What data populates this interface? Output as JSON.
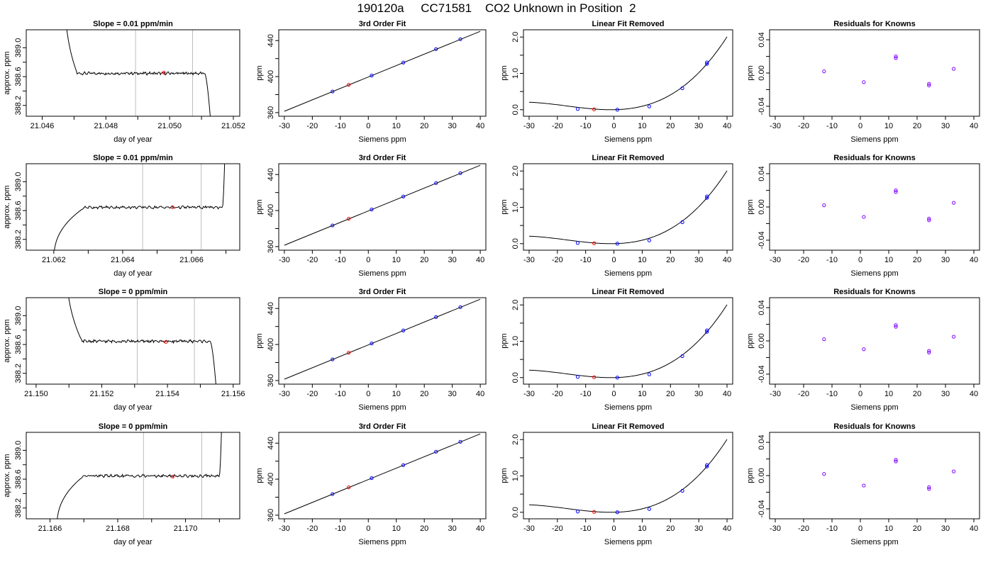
{
  "main_title": "190120a     CC71581    CO2 Unknown in Position  2",
  "colors": {
    "axis": "#000000",
    "line": "#000000",
    "vline": "#bdbdbd",
    "red": "#ff0000",
    "blue": "#0000ff",
    "purple": "#7f00ff"
  },
  "chart_data": [
    {
      "type": "line",
      "row": 0,
      "col": 0,
      "title": "Slope =  0.01  ppm/min",
      "xlabel": "day of year",
      "ylabel": "approx. ppm",
      "xlim": [
        21.0455,
        21.0522
      ],
      "ylim": [
        388.05,
        389.25
      ],
      "xticks": [
        21.046,
        21.048,
        21.05,
        21.052
      ],
      "xticklabels": [
        "21.046",
        "21.048",
        "21.050",
        "21.052"
      ],
      "yticks": [
        388.2,
        388.6,
        389.0
      ],
      "yticklabels": [
        "388.2",
        "388.6",
        "389.0"
      ],
      "series": [
        {
          "start": 21.0467,
          "end": 21.0513,
          "rise_end": 21.0471,
          "fall_start": 21.0511,
          "level": 388.645,
          "start_value": 390.0,
          "end_value": 387.9,
          "kind": "drop_in"
        }
      ],
      "vlines": [
        21.04893,
        21.05072
      ],
      "marker": {
        "x": 21.04982,
        "y": 388.655
      }
    },
    {
      "type": "scatter",
      "row": 0,
      "col": 1,
      "title": "3rd Order Fit",
      "xlabel": "Siemens ppm",
      "ylabel": "ppm",
      "xlim": [
        -32,
        42
      ],
      "ylim": [
        356,
        452
      ],
      "xticks": [
        -30,
        -20,
        -10,
        0,
        10,
        20,
        30,
        40
      ],
      "xticklabels": [
        "-30",
        "-20",
        "-10",
        "0",
        "10",
        "20",
        "30",
        "40"
      ],
      "yticks": [
        360,
        400,
        440
      ],
      "yticklabels": [
        "360",
        "400",
        "440"
      ],
      "fit_line": {
        "x": [
          -30,
          40
        ],
        "y": [
          361.5,
          450.3
        ]
      },
      "points_blue": [
        {
          "x": -12.8,
          "y": 383.5
        },
        {
          "x": 1.2,
          "y": 401.2
        },
        {
          "x": 12.5,
          "y": 415.6
        },
        {
          "x": 24.2,
          "y": 430.5
        },
        {
          "x": 32.9,
          "y": 441.5
        }
      ],
      "points_red": [
        {
          "x": -7.0,
          "y": 390.9
        }
      ]
    },
    {
      "type": "scatter",
      "row": 0,
      "col": 2,
      "title": "Linear Fit Removed",
      "xlabel": "Siemens ppm",
      "ylabel": "ppm",
      "xlim": [
        -32,
        42
      ],
      "ylim": [
        -0.18,
        2.2
      ],
      "xticks": [
        -30,
        -20,
        -10,
        0,
        10,
        20,
        30,
        40
      ],
      "xticklabels": [
        "-30",
        "-20",
        "-10",
        "0",
        "10",
        "20",
        "30",
        "40"
      ],
      "yticks": [
        0,
        1,
        2
      ],
      "yticklabels": [
        "0.0",
        "1.0",
        "2.0"
      ],
      "curve": {
        "a": 0.0,
        "b": 0.0014,
        "c": 0.00068,
        "d": 1.35e-05,
        "x0": -30,
        "x1": 40
      },
      "points_blue": [
        {
          "x": -12.8,
          "y": 0.02
        },
        {
          "x": 1.2,
          "y": 0.0
        },
        {
          "x": 12.5,
          "y": 0.09
        },
        {
          "x": 24.2,
          "y": 0.59
        },
        {
          "x": 32.9,
          "y": 1.26
        },
        {
          "x": 32.9,
          "y": 1.3
        }
      ],
      "points_red": [
        {
          "x": -7.0,
          "y": 0.01
        }
      ]
    },
    {
      "type": "scatter",
      "row": 0,
      "col": 3,
      "title": "Residuals for Knowns",
      "xlabel": "Siemens ppm",
      "ylabel": "ppm",
      "xlim": [
        -32,
        42
      ],
      "ylim": [
        -0.052,
        0.052
      ],
      "xticks": [
        -30,
        -20,
        -10,
        0,
        10,
        20,
        30,
        40
      ],
      "xticklabels": [
        "-30",
        "-20",
        "-10",
        "0",
        "10",
        "20",
        "30",
        "40"
      ],
      "yticks": [
        -0.04,
        0,
        0.04
      ],
      "yticklabels": [
        "-0.04",
        "0.00",
        "0.04"
      ],
      "points_purple": [
        {
          "x": -12.8,
          "y": 0.002
        },
        {
          "x": 1.2,
          "y": -0.011
        },
        {
          "x": 12.5,
          "y": 0.018
        },
        {
          "x": 12.5,
          "y": 0.02
        },
        {
          "x": 24.2,
          "y": -0.015
        },
        {
          "x": 24.2,
          "y": -0.013
        },
        {
          "x": 32.9,
          "y": 0.005
        }
      ]
    },
    {
      "type": "line",
      "row": 1,
      "col": 0,
      "title": "Slope =  0.01  ppm/min",
      "xlabel": "day of year",
      "ylabel": "approx. ppm",
      "xlim": [
        21.0612,
        21.0674
      ],
      "ylim": [
        388.05,
        389.25
      ],
      "xticks": [
        21.062,
        21.064,
        21.066
      ],
      "xticklabels": [
        "21.062",
        "21.064",
        "21.066"
      ],
      "yticks": [
        388.2,
        388.6,
        389.0
      ],
      "yticklabels": [
        "388.2",
        "388.6",
        "389.0"
      ],
      "series": [
        {
          "start": 21.062,
          "end": 21.067,
          "rise_end": 21.0629,
          "fall_start": 21.0669,
          "level": 388.645,
          "start_value": 387.9,
          "end_value": 390.0,
          "kind": "rise_in"
        }
      ],
      "vlines": [
        21.06458,
        21.06628
      ],
      "marker": {
        "x": 21.06545,
        "y": 388.645
      }
    },
    {
      "type": "scatter",
      "row": 1,
      "col": 1,
      "title": "3rd Order Fit",
      "xlabel": "Siemens ppm",
      "ylabel": "ppm",
      "xlim": [
        -32,
        42
      ],
      "ylim": [
        356,
        452
      ],
      "xticks": [
        -30,
        -20,
        -10,
        0,
        10,
        20,
        30,
        40
      ],
      "xticklabels": [
        "-30",
        "-20",
        "-10",
        "0",
        "10",
        "20",
        "30",
        "40"
      ],
      "yticks": [
        360,
        400,
        440
      ],
      "yticklabels": [
        "360",
        "400",
        "440"
      ],
      "fit_line": {
        "x": [
          -30,
          40
        ],
        "y": [
          361.5,
          450.3
        ]
      },
      "points_blue": [
        {
          "x": -12.8,
          "y": 383.5
        },
        {
          "x": 1.2,
          "y": 401.2
        },
        {
          "x": 12.5,
          "y": 415.6
        },
        {
          "x": 24.2,
          "y": 430.5
        },
        {
          "x": 32.9,
          "y": 441.5
        }
      ],
      "points_red": [
        {
          "x": -7.0,
          "y": 390.9
        }
      ]
    },
    {
      "type": "scatter",
      "row": 1,
      "col": 2,
      "title": "Linear Fit Removed",
      "xlabel": "Siemens ppm",
      "ylabel": "ppm",
      "xlim": [
        -32,
        42
      ],
      "ylim": [
        -0.18,
        2.2
      ],
      "xticks": [
        -30,
        -20,
        -10,
        0,
        10,
        20,
        30,
        40
      ],
      "xticklabels": [
        "-30",
        "-20",
        "-10",
        "0",
        "10",
        "20",
        "30",
        "40"
      ],
      "yticks": [
        0,
        1,
        2
      ],
      "yticklabels": [
        "0.0",
        "1.0",
        "2.0"
      ],
      "curve": {
        "a": 0.0,
        "b": 0.0014,
        "c": 0.00068,
        "d": 1.35e-05,
        "x0": -30,
        "x1": 40
      },
      "points_blue": [
        {
          "x": -12.8,
          "y": 0.02
        },
        {
          "x": 1.2,
          "y": 0.0
        },
        {
          "x": 12.5,
          "y": 0.09
        },
        {
          "x": 24.2,
          "y": 0.59
        },
        {
          "x": 32.9,
          "y": 1.26
        },
        {
          "x": 32.9,
          "y": 1.3
        }
      ],
      "points_red": [
        {
          "x": -7.0,
          "y": 0.01
        }
      ]
    },
    {
      "type": "scatter",
      "row": 1,
      "col": 3,
      "title": "Residuals for Knowns",
      "xlabel": "Siemens ppm",
      "ylabel": "ppm",
      "xlim": [
        -32,
        42
      ],
      "ylim": [
        -0.052,
        0.052
      ],
      "xticks": [
        -30,
        -20,
        -10,
        0,
        10,
        20,
        30,
        40
      ],
      "xticklabels": [
        "-30",
        "-20",
        "-10",
        "0",
        "10",
        "20",
        "30",
        "40"
      ],
      "yticks": [
        -0.04,
        0,
        0.04
      ],
      "yticklabels": [
        "-0.04",
        "0.00",
        "0.04"
      ],
      "points_purple": [
        {
          "x": -12.8,
          "y": 0.002
        },
        {
          "x": 1.2,
          "y": -0.012
        },
        {
          "x": 12.5,
          "y": 0.018
        },
        {
          "x": 12.5,
          "y": 0.02
        },
        {
          "x": 24.2,
          "y": -0.016
        },
        {
          "x": 24.2,
          "y": -0.014
        },
        {
          "x": 32.9,
          "y": 0.005
        }
      ]
    },
    {
      "type": "line",
      "row": 2,
      "col": 0,
      "title": "Slope =  0  ppm/min",
      "xlabel": "day of year",
      "ylabel": "approx. ppm",
      "xlim": [
        21.1497,
        21.1562
      ],
      "ylim": [
        388.05,
        389.25
      ],
      "xticks": [
        21.15,
        21.152,
        21.154,
        21.156
      ],
      "xticklabels": [
        "21.150",
        "21.152",
        "21.154",
        "21.156"
      ],
      "yticks": [
        388.2,
        388.6,
        389.0
      ],
      "yticklabels": [
        "388.2",
        "388.6",
        "389.0"
      ],
      "series": [
        {
          "start": 21.1509,
          "end": 21.1555,
          "rise_end": 21.1514,
          "fall_start": 21.1553,
          "level": 388.645,
          "start_value": 390.0,
          "end_value": 387.9,
          "kind": "drop_in"
        }
      ],
      "vlines": [
        21.15308,
        21.15482
      ],
      "marker": {
        "x": 21.15395,
        "y": 388.635
      }
    },
    {
      "type": "scatter",
      "row": 2,
      "col": 1,
      "title": "3rd Order Fit",
      "xlabel": "Siemens ppm",
      "ylabel": "ppm",
      "xlim": [
        -32,
        42
      ],
      "ylim": [
        356,
        452
      ],
      "xticks": [
        -30,
        -20,
        -10,
        0,
        10,
        20,
        30,
        40
      ],
      "xticklabels": [
        "-30",
        "-20",
        "-10",
        "0",
        "10",
        "20",
        "30",
        "40"
      ],
      "yticks": [
        360,
        400,
        440
      ],
      "yticklabels": [
        "360",
        "400",
        "440"
      ],
      "fit_line": {
        "x": [
          -30,
          40
        ],
        "y": [
          361.5,
          450.3
        ]
      },
      "points_blue": [
        {
          "x": -12.8,
          "y": 383.5
        },
        {
          "x": 1.2,
          "y": 401.2
        },
        {
          "x": 12.5,
          "y": 415.6
        },
        {
          "x": 24.2,
          "y": 430.5
        },
        {
          "x": 32.9,
          "y": 441.5
        }
      ],
      "points_red": [
        {
          "x": -7.0,
          "y": 390.9
        }
      ]
    },
    {
      "type": "scatter",
      "row": 2,
      "col": 2,
      "title": "Linear Fit Removed",
      "xlabel": "Siemens ppm",
      "ylabel": "ppm",
      "xlim": [
        -32,
        42
      ],
      "ylim": [
        -0.18,
        2.2
      ],
      "xticks": [
        -30,
        -20,
        -10,
        0,
        10,
        20,
        30,
        40
      ],
      "xticklabels": [
        "-30",
        "-20",
        "-10",
        "0",
        "10",
        "20",
        "30",
        "40"
      ],
      "yticks": [
        0,
        1,
        2
      ],
      "yticklabels": [
        "0.0",
        "1.0",
        "2.0"
      ],
      "curve": {
        "a": 0.0,
        "b": 0.0014,
        "c": 0.00068,
        "d": 1.35e-05,
        "x0": -30,
        "x1": 40
      },
      "points_blue": [
        {
          "x": -12.8,
          "y": 0.02
        },
        {
          "x": 1.2,
          "y": 0.0
        },
        {
          "x": 12.5,
          "y": 0.09
        },
        {
          "x": 24.2,
          "y": 0.59
        },
        {
          "x": 32.9,
          "y": 1.26
        },
        {
          "x": 32.9,
          "y": 1.3
        }
      ],
      "points_red": [
        {
          "x": -7.0,
          "y": 0.01
        }
      ]
    },
    {
      "type": "scatter",
      "row": 2,
      "col": 3,
      "title": "Residuals for Knowns",
      "xlabel": "Siemens ppm",
      "ylabel": "ppm",
      "xlim": [
        -32,
        42
      ],
      "ylim": [
        -0.052,
        0.052
      ],
      "xticks": [
        -30,
        -20,
        -10,
        0,
        10,
        20,
        30,
        40
      ],
      "xticklabels": [
        "-30",
        "-20",
        "-10",
        "0",
        "10",
        "20",
        "30",
        "40"
      ],
      "yticks": [
        -0.04,
        0,
        0.04
      ],
      "yticklabels": [
        "-0.04",
        "0.00",
        "0.04"
      ],
      "points_purple": [
        {
          "x": -12.8,
          "y": 0.002
        },
        {
          "x": 1.2,
          "y": -0.01
        },
        {
          "x": 12.5,
          "y": 0.017
        },
        {
          "x": 12.5,
          "y": 0.019
        },
        {
          "x": 24.2,
          "y": -0.014
        },
        {
          "x": 24.2,
          "y": -0.012
        },
        {
          "x": 32.9,
          "y": 0.005
        }
      ]
    },
    {
      "type": "line",
      "row": 3,
      "col": 0,
      "title": "Slope =  0  ppm/min",
      "xlabel": "day of year",
      "ylabel": "approx. ppm",
      "xlim": [
        21.1653,
        21.1716
      ],
      "ylim": [
        388.05,
        389.25
      ],
      "xticks": [
        21.166,
        21.168,
        21.17
      ],
      "xticklabels": [
        "21.166",
        "21.168",
        "21.170"
      ],
      "yticks": [
        388.2,
        388.6,
        389.0
      ],
      "yticklabels": [
        "388.2",
        "388.6",
        "389.0"
      ],
      "series": [
        {
          "start": 21.1662,
          "end": 21.1711,
          "rise_end": 21.167,
          "fall_start": 21.171,
          "level": 388.645,
          "start_value": 387.9,
          "end_value": 390.0,
          "kind": "rise_in"
        }
      ],
      "vlines": [
        21.16876,
        21.17048
      ],
      "marker": {
        "x": 21.16962,
        "y": 388.635
      }
    },
    {
      "type": "scatter",
      "row": 3,
      "col": 1,
      "title": "3rd Order Fit",
      "xlabel": "Siemens ppm",
      "ylabel": "ppm",
      "xlim": [
        -32,
        42
      ],
      "ylim": [
        356,
        452
      ],
      "xticks": [
        -30,
        -20,
        -10,
        0,
        10,
        20,
        30,
        40
      ],
      "xticklabels": [
        "-30",
        "-20",
        "-10",
        "0",
        "10",
        "20",
        "30",
        "40"
      ],
      "yticks": [
        360,
        400,
        440
      ],
      "yticklabels": [
        "360",
        "400",
        "440"
      ],
      "fit_line": {
        "x": [
          -30,
          40
        ],
        "y": [
          361.5,
          450.3
        ]
      },
      "points_blue": [
        {
          "x": -12.8,
          "y": 383.5
        },
        {
          "x": 1.2,
          "y": 401.2
        },
        {
          "x": 12.5,
          "y": 415.6
        },
        {
          "x": 24.2,
          "y": 430.5
        },
        {
          "x": 32.9,
          "y": 441.5
        }
      ],
      "points_red": [
        {
          "x": -7.0,
          "y": 390.9
        }
      ]
    },
    {
      "type": "scatter",
      "row": 3,
      "col": 2,
      "title": "Linear Fit Removed",
      "xlabel": "Siemens ppm",
      "ylabel": "ppm",
      "xlim": [
        -32,
        42
      ],
      "ylim": [
        -0.18,
        2.2
      ],
      "xticks": [
        -30,
        -20,
        -10,
        0,
        10,
        20,
        30,
        40
      ],
      "xticklabels": [
        "-30",
        "-20",
        "-10",
        "0",
        "10",
        "20",
        "30",
        "40"
      ],
      "yticks": [
        0,
        1,
        2
      ],
      "yticklabels": [
        "0.0",
        "1.0",
        "2.0"
      ],
      "curve": {
        "a": 0.0,
        "b": 0.0014,
        "c": 0.00068,
        "d": 1.35e-05,
        "x0": -30,
        "x1": 40
      },
      "points_blue": [
        {
          "x": -12.8,
          "y": 0.02
        },
        {
          "x": 1.2,
          "y": 0.0
        },
        {
          "x": 12.5,
          "y": 0.09
        },
        {
          "x": 24.2,
          "y": 0.59
        },
        {
          "x": 32.9,
          "y": 1.26
        },
        {
          "x": 32.9,
          "y": 1.3
        }
      ],
      "points_red": [
        {
          "x": -7.0,
          "y": 0.01
        }
      ]
    },
    {
      "type": "scatter",
      "row": 3,
      "col": 3,
      "title": "Residuals for Knowns",
      "xlabel": "Siemens ppm",
      "ylabel": "ppm",
      "xlim": [
        -32,
        42
      ],
      "ylim": [
        -0.052,
        0.052
      ],
      "xticks": [
        -30,
        -20,
        -10,
        0,
        10,
        20,
        30,
        40
      ],
      "xticklabels": [
        "-30",
        "-20",
        "-10",
        "0",
        "10",
        "20",
        "30",
        "40"
      ],
      "yticks": [
        -0.04,
        0,
        0.04
      ],
      "yticklabels": [
        "-0.04",
        "0.00",
        "0.04"
      ],
      "points_purple": [
        {
          "x": -12.8,
          "y": 0.002
        },
        {
          "x": 1.2,
          "y": -0.012
        },
        {
          "x": 12.5,
          "y": 0.017
        },
        {
          "x": 12.5,
          "y": 0.019
        },
        {
          "x": 24.2,
          "y": -0.016
        },
        {
          "x": 24.2,
          "y": -0.014
        },
        {
          "x": 32.9,
          "y": 0.005
        }
      ]
    }
  ]
}
